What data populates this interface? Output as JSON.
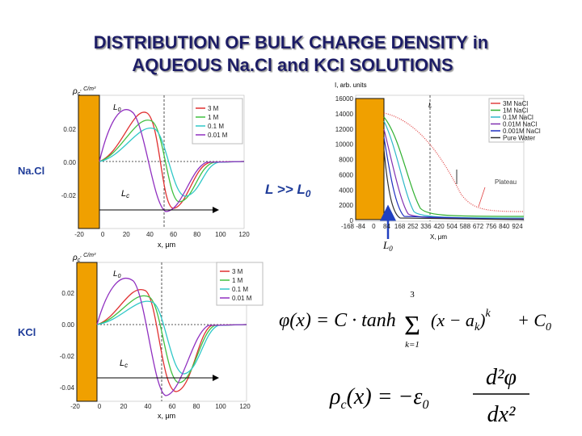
{
  "title": {
    "line1": "DISTRIBUTION OF BULK CHARGE DENSITY in",
    "line2": "AQUEOUS Na.Cl and KCl SOLUTIONS"
  },
  "labels": {
    "nacl": "Na.Cl",
    "kcl": "KCl",
    "relation": "L >> L",
    "relation_sub": "0",
    "l0": "L",
    "l0_sub": "0"
  },
  "chart_nacl": {
    "y_label": "ρ",
    "y_label_sub": "c",
    "y_unit": ", C/m³",
    "x_label": "x, μm",
    "yticks": [
      "0.02",
      "0.00",
      "-0.02"
    ],
    "xticks": [
      "-20",
      "0",
      "20",
      "40",
      "60",
      "80",
      "100",
      "120"
    ],
    "legend": [
      "3 M",
      "1 M",
      "0.1 M",
      "0.01 M"
    ],
    "l0": "L",
    "l0_sub": "0",
    "lc": "L",
    "lc_sub": "c"
  },
  "chart_kcl": {
    "y_label": "ρ",
    "y_label_sub": "c",
    "y_unit": ", C/m³",
    "x_label": "x, μm",
    "yticks": [
      "0.02",
      "0.00",
      "-0.02",
      "-0.04"
    ],
    "xticks": [
      "-20",
      "0",
      "20",
      "40",
      "60",
      "80",
      "100",
      "120"
    ],
    "legend": [
      "3 M",
      "1 M",
      "0.1 M",
      "0.01 M"
    ],
    "l0": "L",
    "l0_sub": "0",
    "lc": "L",
    "lc_sub": "c"
  },
  "chart_intensity": {
    "y_label": "I, arb. units",
    "x_label": "X, μm",
    "yticks": [
      "16000",
      "14000",
      "12000",
      "10000",
      "8000",
      "6000",
      "4000",
      "2000",
      "0"
    ],
    "xticks": [
      "-168",
      "-84",
      "0",
      "84",
      "168",
      "252",
      "336",
      "420",
      "504",
      "588",
      "672",
      "756",
      "840",
      "924"
    ],
    "legend": [
      "3M NaCl",
      "1M NaCl",
      "0.1M NaCl",
      "0.01M NaCl",
      "0.001M NaCl",
      "Pure Water"
    ],
    "plateau": "Plateau",
    "l": "L"
  },
  "equations": {
    "phi": {
      "lhs": "φ(x) = C · tanh",
      "sum_top": "3",
      "sum": "Σ",
      "sum_bottom": "k=1",
      "term": "(x − a",
      "term_sub": "k",
      "term_close": ")",
      "power": "k",
      "tail": "+ C",
      "tail_sub": "0"
    },
    "rho": {
      "lhs": "ρ",
      "lhs_sub": "c",
      "mid": "(x) = −ε",
      "mid_sub": "0",
      "num": "d²φ",
      "den": "dx²"
    }
  }
}
